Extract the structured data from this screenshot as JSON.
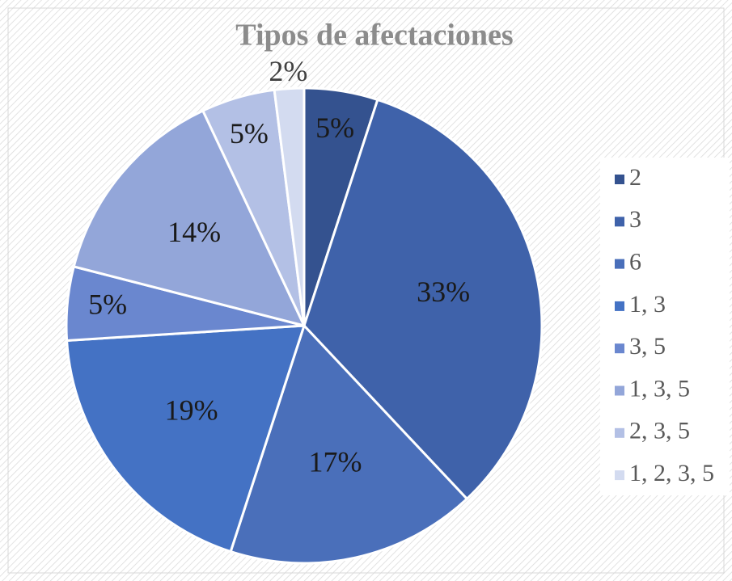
{
  "chart_data": {
    "type": "pie",
    "title": "Tipos de afectaciones",
    "categories": [
      "2",
      "3",
      "6",
      "1, 3",
      "3, 5",
      "1, 3, 5",
      "2, 3, 5",
      "1, 2, 3, 5"
    ],
    "values": [
      5,
      33,
      17,
      19,
      5,
      14,
      5,
      2
    ],
    "value_labels": [
      "5%",
      "33%",
      "17%",
      "19%",
      "5%",
      "14%",
      "5%",
      "2%"
    ],
    "colors": [
      "#34528f",
      "#3f62aa",
      "#4a6fba",
      "#4472c4",
      "#6a87cf",
      "#93a6d9",
      "#b3c0e5",
      "#d3dbf0"
    ],
    "legend": "right"
  }
}
